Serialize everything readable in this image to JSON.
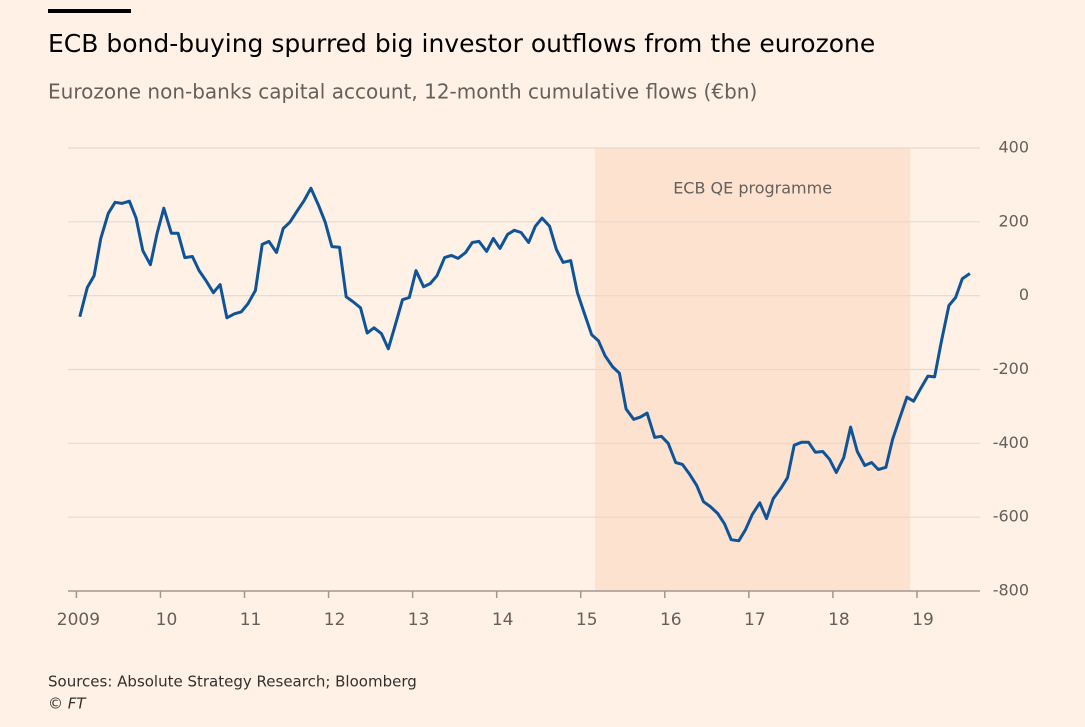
{
  "chart_data": {
    "type": "line",
    "title": "ECB bond-buying spurred big investor outflows from the eurozone",
    "subtitle": "Eurozone non-banks capital account, 12-month cumulative flows (€bn)",
    "source": "Sources: Absolute Strategy Research; Bloomberg",
    "credit": "© FT",
    "shade": {
      "start": 2015.17,
      "end": 2018.92,
      "label": "ECB QE programme",
      "color": "#fde2d0"
    },
    "x": [
      2009.04,
      2009.13,
      2009.21,
      2009.29,
      2009.38,
      2009.46,
      2009.54,
      2009.63,
      2009.71,
      2009.79,
      2009.88,
      2009.96,
      2010.04,
      2010.13,
      2010.21,
      2010.29,
      2010.38,
      2010.46,
      2010.54,
      2010.63,
      2010.71,
      2010.79,
      2010.88,
      2010.96,
      2011.04,
      2011.13,
      2011.21,
      2011.29,
      2011.38,
      2011.46,
      2011.54,
      2011.63,
      2011.71,
      2011.79,
      2011.88,
      2011.96,
      2012.04,
      2012.13,
      2012.21,
      2012.29,
      2012.38,
      2012.46,
      2012.54,
      2012.63,
      2012.71,
      2012.79,
      2012.88,
      2012.96,
      2013.04,
      2013.13,
      2013.21,
      2013.29,
      2013.38,
      2013.46,
      2013.54,
      2013.63,
      2013.71,
      2013.79,
      2013.88,
      2013.96,
      2014.04,
      2014.13,
      2014.21,
      2014.29,
      2014.38,
      2014.46,
      2014.54,
      2014.63,
      2014.71,
      2014.79,
      2014.88,
      2014.96,
      2015.04,
      2015.13,
      2015.21,
      2015.29,
      2015.38,
      2015.46,
      2015.54,
      2015.63,
      2015.71,
      2015.79,
      2015.88,
      2015.96,
      2016.04,
      2016.13,
      2016.21,
      2016.29,
      2016.38,
      2016.46,
      2016.54,
      2016.63,
      2016.71,
      2016.79,
      2016.88,
      2016.96,
      2017.04,
      2017.13,
      2017.21,
      2017.29,
      2017.38,
      2017.46,
      2017.54,
      2017.63,
      2017.71,
      2017.79,
      2017.88,
      2017.96,
      2018.04,
      2018.13,
      2018.21,
      2018.29,
      2018.38,
      2018.46,
      2018.54,
      2018.63,
      2018.71,
      2018.79,
      2018.88,
      2018.96,
      2019.04,
      2019.13,
      2019.21,
      2019.29,
      2019.38,
      2019.46,
      2019.54,
      2019.63
    ],
    "series": [
      {
        "color": "#0f5499",
        "values": [
          -57,
          22,
          54,
          155,
          223,
          253,
          250,
          256,
          210,
          122,
          84,
          169,
          237,
          169,
          169,
          103,
          106,
          68,
          41,
          8,
          30,
          -60,
          -49,
          -44,
          -22,
          14,
          139,
          147,
          117,
          182,
          199,
          231,
          258,
          291,
          245,
          199,
          133,
          131,
          -3,
          -16,
          -33,
          -101,
          -87,
          -103,
          -144,
          -82,
          -11,
          -5,
          68,
          24,
          33,
          54,
          103,
          109,
          101,
          117,
          144,
          147,
          120,
          155,
          128,
          166,
          177,
          171,
          144,
          188,
          210,
          188,
          125,
          90,
          95,
          8,
          -46,
          -106,
          -122,
          -163,
          -193,
          -210,
          -307,
          -335,
          -329,
          -318,
          -384,
          -381,
          -400,
          -452,
          -457,
          -482,
          -514,
          -558,
          -571,
          -590,
          -618,
          -661,
          -664,
          -634,
          -593,
          -561,
          -604,
          -550,
          -522,
          -493,
          -405,
          -397,
          -397,
          -424,
          -422,
          -443,
          -479,
          -438,
          -356,
          -422,
          -460,
          -452,
          -471,
          -465,
          -389,
          -335,
          -275,
          -286,
          -253,
          -218,
          -220,
          -125,
          -27,
          -5,
          46,
          60
        ]
      }
    ],
    "xlim": [
      2008.9,
      2019.75
    ],
    "xticks": [
      2009,
      {
        "value": 2010,
        "label": "10"
      },
      {
        "value": 2011,
        "label": "11"
      },
      {
        "value": 2012,
        "label": "12"
      },
      {
        "value": 2013,
        "label": "13"
      },
      {
        "value": 2014,
        "label": "14"
      },
      {
        "value": 2015,
        "label": "15"
      },
      {
        "value": 2016,
        "label": "16"
      },
      {
        "value": 2017,
        "label": "17"
      },
      {
        "value": 2018,
        "label": "18"
      },
      {
        "value": 2019,
        "label": "19"
      }
    ],
    "ylim": [
      -800,
      400
    ],
    "yticks": [
      400,
      200,
      0,
      -200,
      -400,
      -600,
      -800
    ],
    "grid": true
  }
}
